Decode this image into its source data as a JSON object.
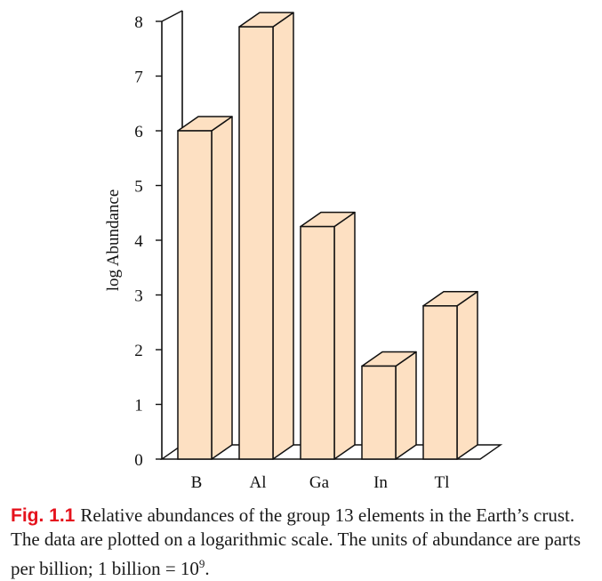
{
  "chart_data": {
    "type": "bar",
    "categories": [
      "B",
      "Al",
      "Ga",
      "In",
      "Tl"
    ],
    "values": [
      6.0,
      7.9,
      4.25,
      1.7,
      2.8
    ],
    "title": "",
    "xlabel": "",
    "ylabel": "log Abundance",
    "ylim": [
      0,
      8
    ],
    "yticks": [
      "0",
      "1",
      "2",
      "3",
      "4",
      "5",
      "6",
      "7",
      "8"
    ],
    "bar_color": "#fde0c2",
    "style": "3d",
    "grid": false
  },
  "caption": {
    "label": "Fig.  1.1",
    "text": "Relative abundances of the group 13 elements in the Earth’s crust. The data are plotted on a logarithmic scale. The units of abundance are parts per billion; 1 billion = 10",
    "exponent": "9",
    "end": "."
  }
}
